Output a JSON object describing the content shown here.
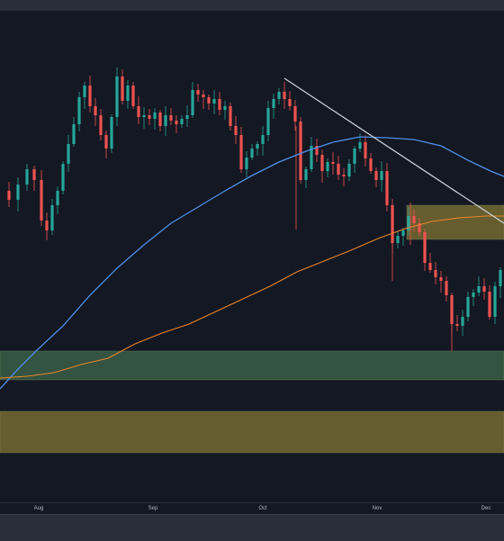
{
  "time_axis": {
    "labels": [
      "Aug",
      "Sep",
      "Oct",
      "Nov",
      "Dec"
    ]
  },
  "colors": {
    "background": "#141823",
    "candle_up": "#26a69a",
    "candle_down": "#ef5350",
    "ma_fast": "#4d8fe6",
    "ma_slow": "#e8862a",
    "trendline": "#d0d3da",
    "support_zone": "#3a5e45",
    "yellow_zone": "#6e6530"
  },
  "chart_data": {
    "type": "candlestick",
    "x_axis_ticks": [
      "Aug",
      "Sep",
      "Oct",
      "Nov",
      "Dec"
    ],
    "overlays": [
      {
        "kind": "moving-average",
        "color": "blue"
      },
      {
        "kind": "moving-average",
        "color": "orange"
      },
      {
        "kind": "trendline",
        "color": "white"
      },
      {
        "kind": "zone",
        "color": "green"
      },
      {
        "kind": "zone",
        "color": "yellow"
      },
      {
        "kind": "zone",
        "color": "yellow"
      }
    ],
    "grid": false
  }
}
